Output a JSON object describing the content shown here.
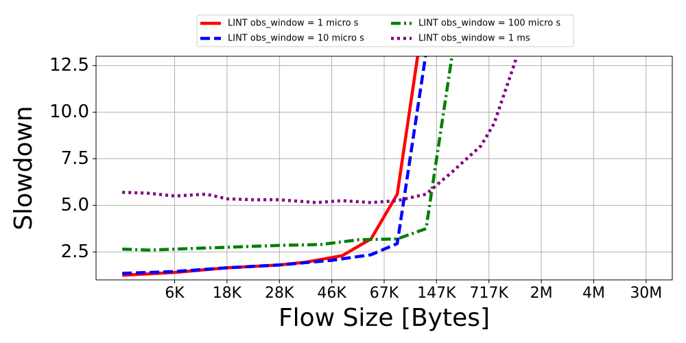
{
  "chart_data": {
    "type": "line",
    "xlabel": "Flow Size [Bytes]",
    "ylabel": "Slowdown",
    "xlim": [
      -1,
      21
    ],
    "ylim": [
      1,
      13
    ],
    "xticks": [
      {
        "value": 2,
        "label": "6K"
      },
      {
        "value": 4,
        "label": "18K"
      },
      {
        "value": 6,
        "label": "28K"
      },
      {
        "value": 8,
        "label": "46K"
      },
      {
        "value": 10,
        "label": "67K"
      },
      {
        "value": 12,
        "label": "147K"
      },
      {
        "value": 14,
        "label": "717K"
      },
      {
        "value": 16,
        "label": "2M"
      },
      {
        "value": 18,
        "label": "4M"
      },
      {
        "value": 20,
        "label": "30M"
      }
    ],
    "yticks": [
      2.5,
      {
        "value": 5,
        "label": "5.0"
      },
      7.5,
      {
        "value": 10,
        "label": "10.0"
      },
      12.5
    ],
    "grid": true,
    "legend": "top",
    "series": [
      {
        "name": "LINT obs_window = 1 micro s",
        "color": "#ff0000",
        "linestyle": "solid",
        "x": [
          0,
          2,
          4,
          6,
          7,
          8.4,
          9.5,
          10.5,
          11.3
        ],
        "values": [
          1.25,
          1.4,
          1.65,
          1.8,
          1.95,
          2.3,
          3.2,
          5.6,
          13.2
        ]
      },
      {
        "name": "LINT obs_window = 10 micro s",
        "color": "#0000ff",
        "linestyle": "dashed",
        "x": [
          0,
          2,
          4,
          6,
          8,
          9.5,
          10.5,
          11.6
        ],
        "values": [
          1.35,
          1.45,
          1.65,
          1.8,
          2.05,
          2.35,
          2.95,
          13.2
        ]
      },
      {
        "name": "LINT obs_window = 100 micro s",
        "color": "#008000",
        "linestyle": "dashdot",
        "x": [
          0,
          1,
          2,
          4,
          6,
          7.6,
          9,
          10.5,
          11.6,
          12.6
        ],
        "values": [
          2.65,
          2.6,
          2.65,
          2.75,
          2.85,
          2.9,
          3.15,
          3.2,
          3.75,
          13.1
        ]
      },
      {
        "name": "LINT obs_window = 1 ms",
        "color": "#800080",
        "linestyle": "dotted",
        "x": [
          0,
          1,
          2,
          3.2,
          4,
          5,
          6,
          7.4,
          8.4,
          9.5,
          10.5,
          11.6,
          12.6,
          13.7,
          14.2,
          15,
          15.1
        ],
        "values": [
          5.7,
          5.65,
          5.5,
          5.6,
          5.35,
          5.3,
          5.3,
          5.15,
          5.25,
          5.15,
          5.25,
          5.6,
          6.8,
          8.2,
          9.4,
          12.7,
          13.2
        ]
      }
    ]
  }
}
